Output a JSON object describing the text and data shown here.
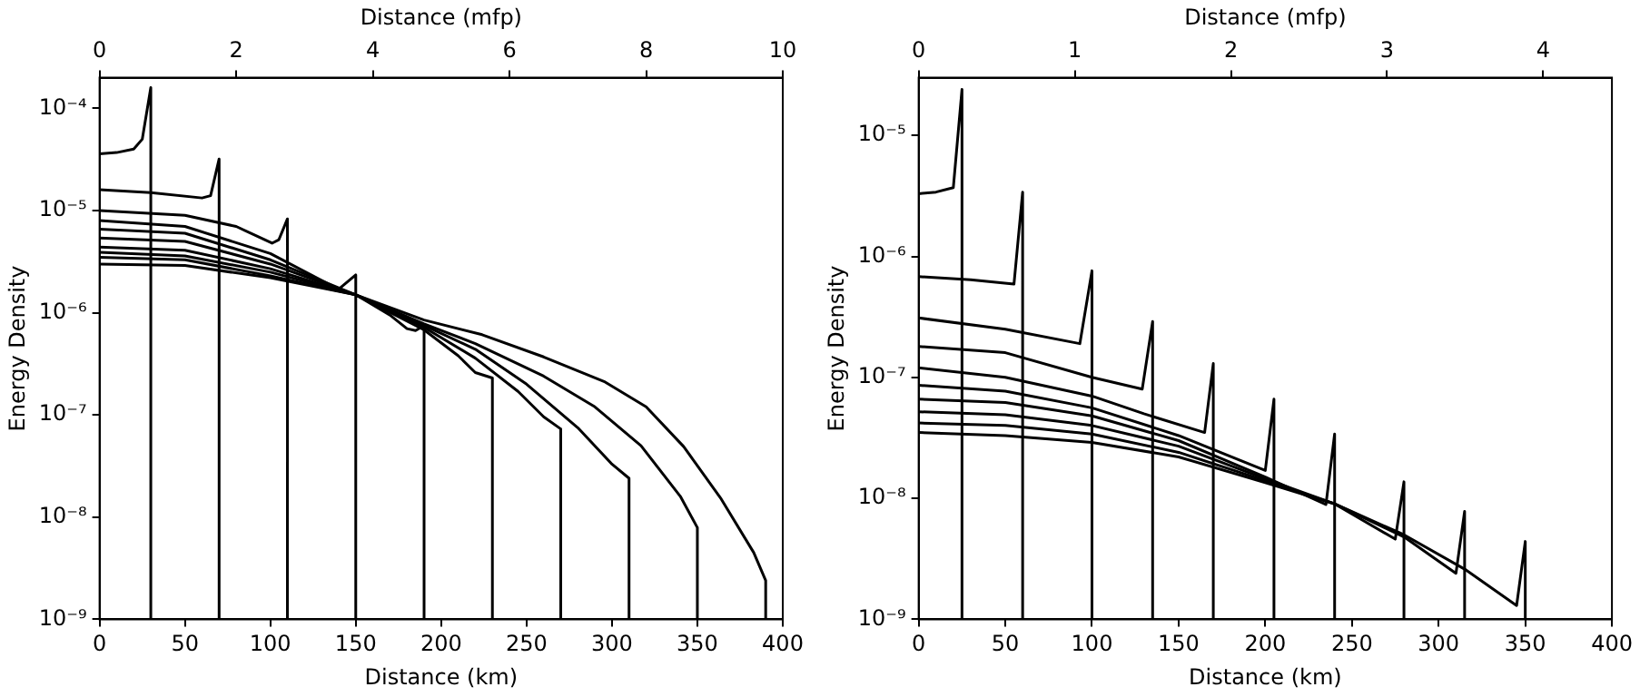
{
  "chart_data": [
    {
      "type": "line",
      "xlabel": "Distance (km)",
      "ylabel": "Energy Density",
      "x2label": "Distance (mfp)",
      "log": "y",
      "marker": "none",
      "grid": false,
      "xlim": [
        0,
        400
      ],
      "xticks": [
        0,
        50,
        100,
        150,
        200,
        250,
        300,
        350,
        400
      ],
      "x2lim": [
        0,
        10
      ],
      "x2ticks": [
        0,
        2,
        4,
        6,
        8,
        10
      ],
      "ylim": [
        1e-09,
        0.0002
      ],
      "yticks": [
        {
          "value": 1e-09,
          "label": "10⁻⁹"
        },
        {
          "value": 1e-08,
          "label": "10⁻⁸"
        },
        {
          "value": 1e-07,
          "label": "10⁻⁷"
        },
        {
          "value": 1e-06,
          "label": "10⁻⁶"
        },
        {
          "value": 1e-05,
          "label": "10⁻⁵"
        },
        {
          "value": 0.0001,
          "label": "10⁻⁴"
        }
      ],
      "series": [
        {
          "color": "#000000",
          "x": [
            0,
            10,
            20,
            25,
            30,
            30
          ],
          "values": [
            3.6e-05,
            3.7e-05,
            4e-05,
            5e-05,
            0.00016,
            1e-09
          ]
        },
        {
          "color": "#000000",
          "x": [
            0,
            30,
            60,
            65,
            70,
            70
          ],
          "values": [
            1.6e-05,
            1.5e-05,
            1.33e-05,
            1.4e-05,
            3.2e-05,
            1e-09
          ]
        },
        {
          "color": "#000000",
          "x": [
            0,
            50,
            80,
            101,
            105,
            110,
            110
          ],
          "values": [
            1e-05,
            9e-06,
            7e-06,
            4.8e-06,
            5.2e-06,
            8.3e-06,
            1e-09
          ]
        },
        {
          "color": "#000000",
          "x": [
            0,
            50,
            100,
            140,
            150,
            150
          ],
          "values": [
            8e-06,
            7e-06,
            3.8e-06,
            1.7e-06,
            2.35e-06,
            1e-09
          ]
        },
        {
          "color": "#000000",
          "x": [
            0,
            50,
            100,
            150,
            170,
            180,
            185,
            190,
            190
          ],
          "values": [
            6.6e-06,
            6e-06,
            3.3e-06,
            1.5e-06,
            9.5e-07,
            7e-07,
            6.7e-07,
            7.5e-07,
            1e-09
          ]
        },
        {
          "color": "#000000",
          "x": [
            0,
            50,
            100,
            150,
            190,
            210,
            220,
            230,
            230
          ],
          "values": [
            5.4e-06,
            5e-06,
            3e-06,
            1.5e-06,
            6.8e-07,
            3.8e-07,
            2.6e-07,
            2.3e-07,
            1e-09
          ]
        },
        {
          "color": "#000000",
          "x": [
            0,
            50,
            100,
            150,
            190,
            220,
            245,
            260,
            270,
            270
          ],
          "values": [
            4.4e-06,
            4.1e-06,
            2.7e-06,
            1.5e-06,
            7.2e-07,
            3.6e-07,
            1.7e-07,
            9.6e-08,
            7.3e-08,
            1e-09
          ]
        },
        {
          "color": "#000000",
          "x": [
            0,
            50,
            100,
            150,
            190,
            220,
            250,
            280,
            300,
            310,
            310
          ],
          "values": [
            3.9e-06,
            3.6e-06,
            2.5e-06,
            1.5e-06,
            7.5e-07,
            4.4e-07,
            2e-07,
            7.5e-08,
            3.3e-08,
            2.4e-08,
            1e-09
          ]
        },
        {
          "color": "#000000",
          "x": [
            0,
            50,
            100,
            150,
            190,
            220,
            260,
            290,
            317,
            340,
            350,
            350
          ],
          "values": [
            3.5e-06,
            3.3e-06,
            2.3e-06,
            1.5e-06,
            7.8e-07,
            5e-07,
            2.4e-07,
            1.2e-07,
            5e-08,
            1.6e-08,
            7.9e-09,
            1e-09
          ]
        },
        {
          "color": "#000000",
          "x": [
            0,
            50,
            100,
            150,
            190,
            224,
            260,
            296,
            320,
            342,
            364,
            383,
            390,
            390
          ],
          "values": [
            3e-06,
            2.9e-06,
            2.2e-06,
            1.5e-06,
            8.5e-07,
            6.1e-07,
            3.7e-07,
            2.1e-07,
            1.2e-07,
            4.9e-08,
            1.5e-08,
            4.5e-09,
            2.4e-09,
            1e-09
          ]
        }
      ]
    },
    {
      "type": "line",
      "xlabel": "Distance (km)",
      "ylabel": "Energy Density",
      "x2label": "Distance (mfp)",
      "log": "y",
      "marker": "none",
      "grid": false,
      "xlim": [
        0,
        400
      ],
      "xticks": [
        0,
        50,
        100,
        150,
        200,
        250,
        300,
        350,
        400
      ],
      "x2lim": [
        0,
        4.44
      ],
      "x2ticks": [
        0,
        1,
        2,
        3,
        4
      ],
      "ylim": [
        1e-09,
        3e-05
      ],
      "yticks": [
        {
          "value": 1e-09,
          "label": "10⁻⁹"
        },
        {
          "value": 1e-08,
          "label": "10⁻⁸"
        },
        {
          "value": 1e-07,
          "label": "10⁻⁷"
        },
        {
          "value": 1e-06,
          "label": "10⁻⁶"
        },
        {
          "value": 1e-05,
          "label": "10⁻⁵"
        }
      ],
      "series": [
        {
          "color": "#000000",
          "x": [
            0,
            10,
            20,
            25,
            25
          ],
          "values": [
            3.3e-06,
            3.4e-06,
            3.7e-06,
            2.4e-05,
            1e-09
          ]
        },
        {
          "color": "#000000",
          "x": [
            0,
            30,
            55,
            60,
            60
          ],
          "values": [
            6.8e-07,
            6.4e-07,
            5.9e-07,
            3.4e-06,
            1e-09
          ]
        },
        {
          "color": "#000000",
          "x": [
            0,
            50,
            93,
            100,
            100
          ],
          "values": [
            3.1e-07,
            2.5e-07,
            1.9e-07,
            7.6e-07,
            1e-09
          ]
        },
        {
          "color": "#000000",
          "x": [
            0,
            50,
            100,
            129,
            135,
            135
          ],
          "values": [
            1.8e-07,
            1.6e-07,
            1e-07,
            8e-08,
            2.9e-07,
            1e-09
          ]
        },
        {
          "color": "#000000",
          "x": [
            0,
            50,
            100,
            130,
            165,
            170,
            170
          ],
          "values": [
            1.2e-07,
            1e-07,
            7e-08,
            5e-08,
            3.5e-08,
            1.3e-07,
            1e-09
          ]
        },
        {
          "color": "#000000",
          "x": [
            0,
            50,
            100,
            150,
            200,
            205,
            205
          ],
          "values": [
            8.6e-08,
            7.7e-08,
            5.6e-08,
            3.3e-08,
            1.7e-08,
            6.6e-08,
            1e-09
          ]
        },
        {
          "color": "#000000",
          "x": [
            0,
            50,
            100,
            150,
            200,
            235,
            240,
            240
          ],
          "values": [
            6.6e-08,
            6.2e-08,
            4.8e-08,
            3e-08,
            1.5e-08,
            8.9e-09,
            3.4e-08,
            1e-09
          ]
        },
        {
          "color": "#000000",
          "x": [
            0,
            50,
            100,
            150,
            200,
            240,
            275,
            280,
            280
          ],
          "values": [
            5.2e-08,
            4.9e-08,
            4e-08,
            2.7e-08,
            1.45e-08,
            9e-09,
            4.6e-09,
            1.37e-08,
            1e-09
          ]
        },
        {
          "color": "#000000",
          "x": [
            0,
            50,
            100,
            150,
            200,
            240,
            280,
            310,
            315,
            315
          ],
          "values": [
            4.2e-08,
            4e-08,
            3.4e-08,
            2.4e-08,
            1.4e-08,
            9e-09,
            4.8e-09,
            2.4e-09,
            7.8e-09,
            1e-09
          ]
        },
        {
          "color": "#000000",
          "x": [
            0,
            50,
            100,
            150,
            200,
            240,
            280,
            315,
            345,
            350,
            350
          ],
          "values": [
            3.5e-08,
            3.3e-08,
            2.9e-08,
            2.2e-08,
            1.35e-08,
            9e-09,
            5e-09,
            2.6e-09,
            1.3e-09,
            4.4e-09,
            1e-09
          ]
        }
      ]
    }
  ]
}
